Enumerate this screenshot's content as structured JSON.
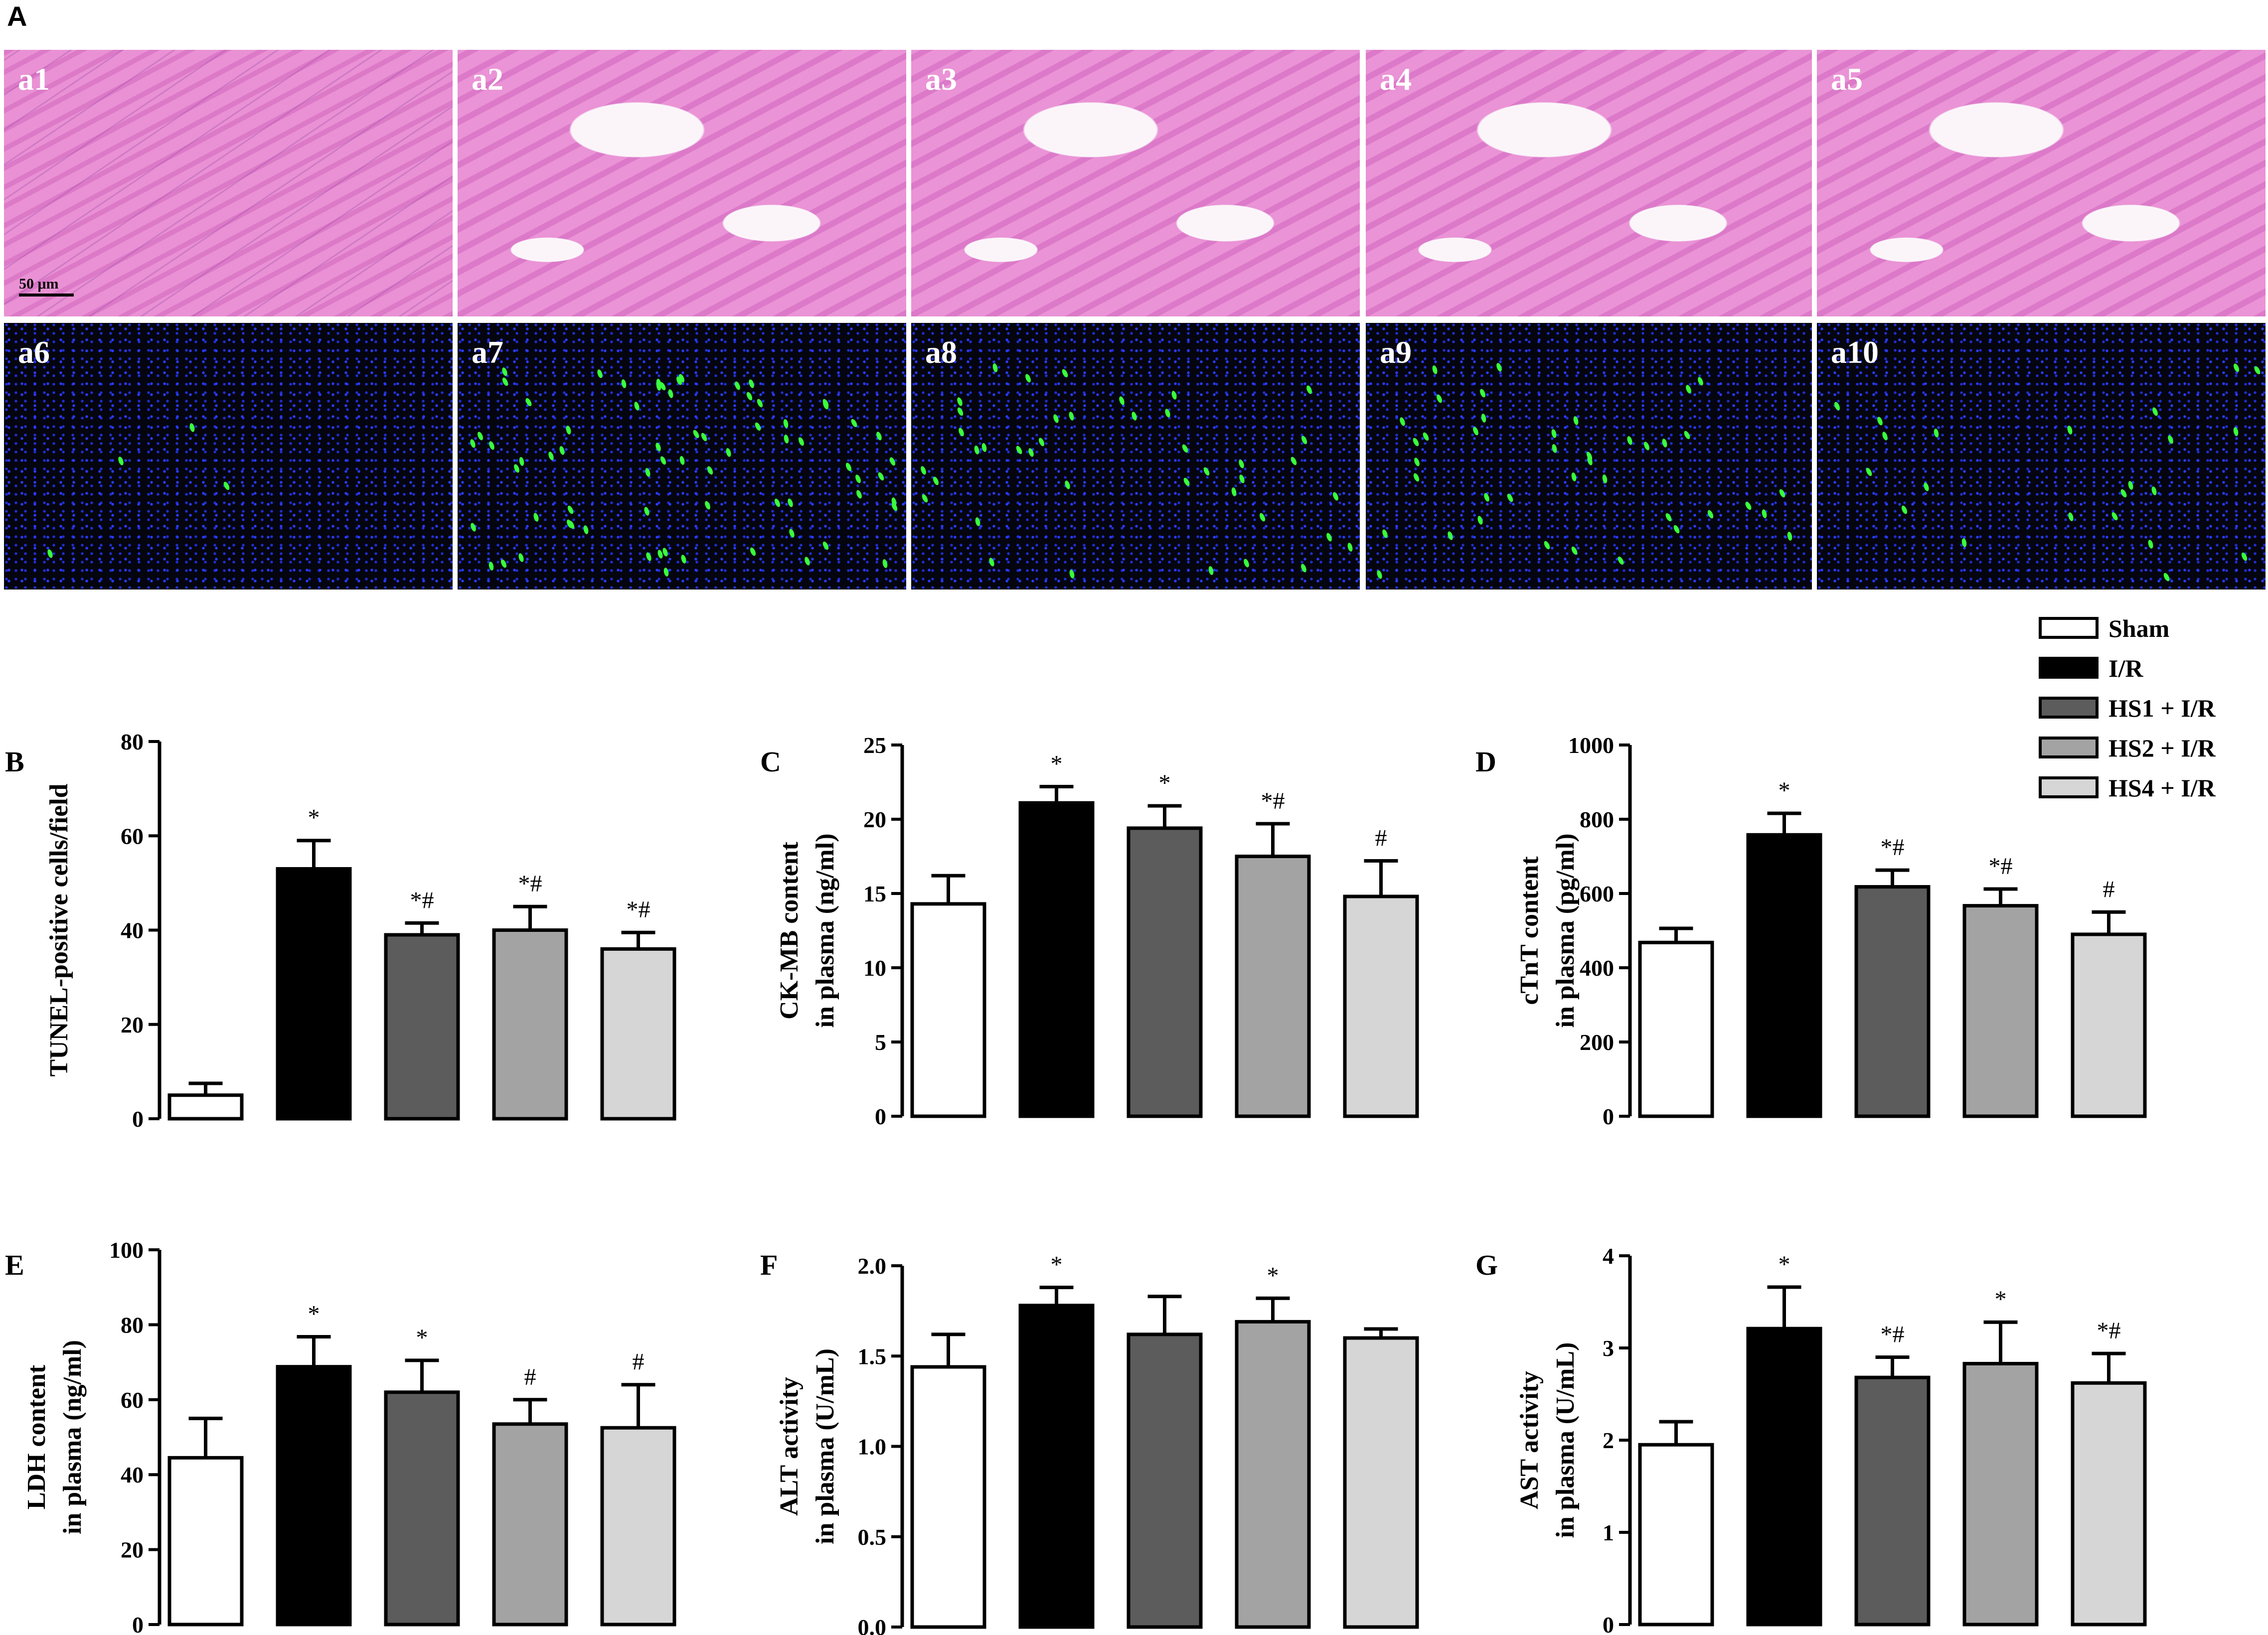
{
  "figure_label_a": "A",
  "tiles": [
    {
      "label": "a1",
      "kind": "he"
    },
    {
      "label": "a2",
      "kind": "he"
    },
    {
      "label": "a3",
      "kind": "he"
    },
    {
      "label": "a4",
      "kind": "he"
    },
    {
      "label": "a5",
      "kind": "he"
    },
    {
      "label": "a6",
      "kind": "tunel"
    },
    {
      "label": "a7",
      "kind": "tunel"
    },
    {
      "label": "a8",
      "kind": "tunel"
    },
    {
      "label": "a9",
      "kind": "tunel"
    },
    {
      "label": "a10",
      "kind": "tunel"
    }
  ],
  "scale_bar": "50 μm",
  "legend": [
    {
      "label": "Sham",
      "color": "#ffffff"
    },
    {
      "label": "I/R",
      "color": "#000000"
    },
    {
      "label": "HS1 + I/R",
      "color": "#5c5c5c"
    },
    {
      "label": "HS2 + I/R",
      "color": "#a3a3a3"
    },
    {
      "label": "HS4 + I/R",
      "color": "#d6d6d6"
    }
  ],
  "chart_data": [
    {
      "panel": "B",
      "type": "bar",
      "categories": [
        "Sham",
        "I/R",
        "HS1 + I/R",
        "HS2 + I/R",
        "HS4 + I/R"
      ],
      "values": [
        5,
        53,
        39,
        40,
        36
      ],
      "errors": [
        2.5,
        6,
        2.5,
        5,
        3.5
      ],
      "annotations": [
        "",
        "*",
        "*#",
        "*#",
        "*#"
      ],
      "ylabel_lines": [
        "TUNEL-positive cells/field"
      ],
      "ylim": [
        0,
        80
      ],
      "yticks": [
        "0",
        "20",
        "40",
        "60",
        "80"
      ],
      "ytick_values": [
        0,
        20,
        40,
        60,
        80
      ]
    },
    {
      "panel": "C",
      "type": "bar",
      "categories": [
        "Sham",
        "I/R",
        "HS1 + I/R",
        "HS2 + I/R",
        "HS4 + I/R"
      ],
      "values": [
        14.3,
        21.1,
        19.4,
        17.5,
        14.8
      ],
      "errors": [
        1.9,
        1.1,
        1.5,
        2.2,
        2.4
      ],
      "annotations": [
        "",
        "*",
        "*",
        "*#",
        "#"
      ],
      "ylabel_lines": [
        "CK-MB content",
        "in plasma (ng/ml)"
      ],
      "ylim": [
        0,
        25
      ],
      "yticks": [
        "0",
        "5",
        "10",
        "15",
        "20",
        "25"
      ],
      "ytick_values": [
        0,
        5,
        10,
        15,
        20,
        25
      ]
    },
    {
      "panel": "D",
      "type": "bar",
      "categories": [
        "Sham",
        "I/R",
        "HS1 + I/R",
        "HS2 + I/R",
        "HS4 + I/R"
      ],
      "values": [
        468,
        758,
        618,
        567,
        490
      ],
      "errors": [
        38,
        58,
        45,
        45,
        60
      ],
      "annotations": [
        "",
        "*",
        "*#",
        "*#",
        "#"
      ],
      "ylabel_lines": [
        "cTnT content",
        "in plasma (pg/ml)"
      ],
      "ylim": [
        0,
        1000
      ],
      "yticks": [
        "0",
        "200",
        "400",
        "600",
        "800",
        "1000"
      ],
      "ytick_values": [
        0,
        200,
        400,
        600,
        800,
        1000
      ]
    },
    {
      "panel": "E",
      "type": "bar",
      "categories": [
        "Sham",
        "I/R",
        "HS1 + I/R",
        "HS2 + I/R",
        "HS4 + I/R"
      ],
      "values": [
        44.5,
        68.8,
        62,
        53.5,
        52.5
      ],
      "errors": [
        10.5,
        8,
        8.5,
        6.5,
        11.5
      ],
      "annotations": [
        "",
        "*",
        "*",
        "#",
        "#"
      ],
      "ylabel_lines": [
        "LDH content",
        "in plasma (ng/ml)"
      ],
      "ylim": [
        0,
        100
      ],
      "yticks": [
        "0",
        "20",
        "40",
        "60",
        "80",
        "100"
      ],
      "ytick_values": [
        0,
        20,
        40,
        60,
        80,
        100
      ]
    },
    {
      "panel": "F",
      "type": "bar",
      "categories": [
        "Sham",
        "I/R",
        "HS1 + I/R",
        "HS2 + I/R",
        "HS4 + I/R"
      ],
      "values": [
        1.44,
        1.78,
        1.62,
        1.69,
        1.6
      ],
      "errors": [
        0.18,
        0.1,
        0.21,
        0.13,
        0.05
      ],
      "annotations": [
        "",
        "*",
        "",
        "*",
        ""
      ],
      "ylabel_lines": [
        "ALT activity",
        "in plasma (U/mL)"
      ],
      "ylim": [
        0,
        2
      ],
      "yticks": [
        "0.0",
        "0.5",
        "1.0",
        "1.5",
        "2.0"
      ],
      "ytick_values": [
        0,
        0.5,
        1,
        1.5,
        2
      ]
    },
    {
      "panel": "G",
      "type": "bar",
      "categories": [
        "Sham",
        "I/R",
        "HS1 + I/R",
        "HS2 + I/R",
        "HS4 + I/R"
      ],
      "values": [
        1.95,
        3.21,
        2.68,
        2.83,
        2.62
      ],
      "errors": [
        0.25,
        0.45,
        0.22,
        0.45,
        0.32
      ],
      "annotations": [
        "",
        "*",
        "*#",
        "*",
        "*#"
      ],
      "ylabel_lines": [
        "AST activity",
        "in plasma (U/mL)"
      ],
      "ylim": [
        0,
        4
      ],
      "yticks": [
        "0",
        "1",
        "2",
        "3",
        "4"
      ],
      "ytick_values": [
        0,
        1,
        2,
        3,
        4
      ]
    }
  ]
}
